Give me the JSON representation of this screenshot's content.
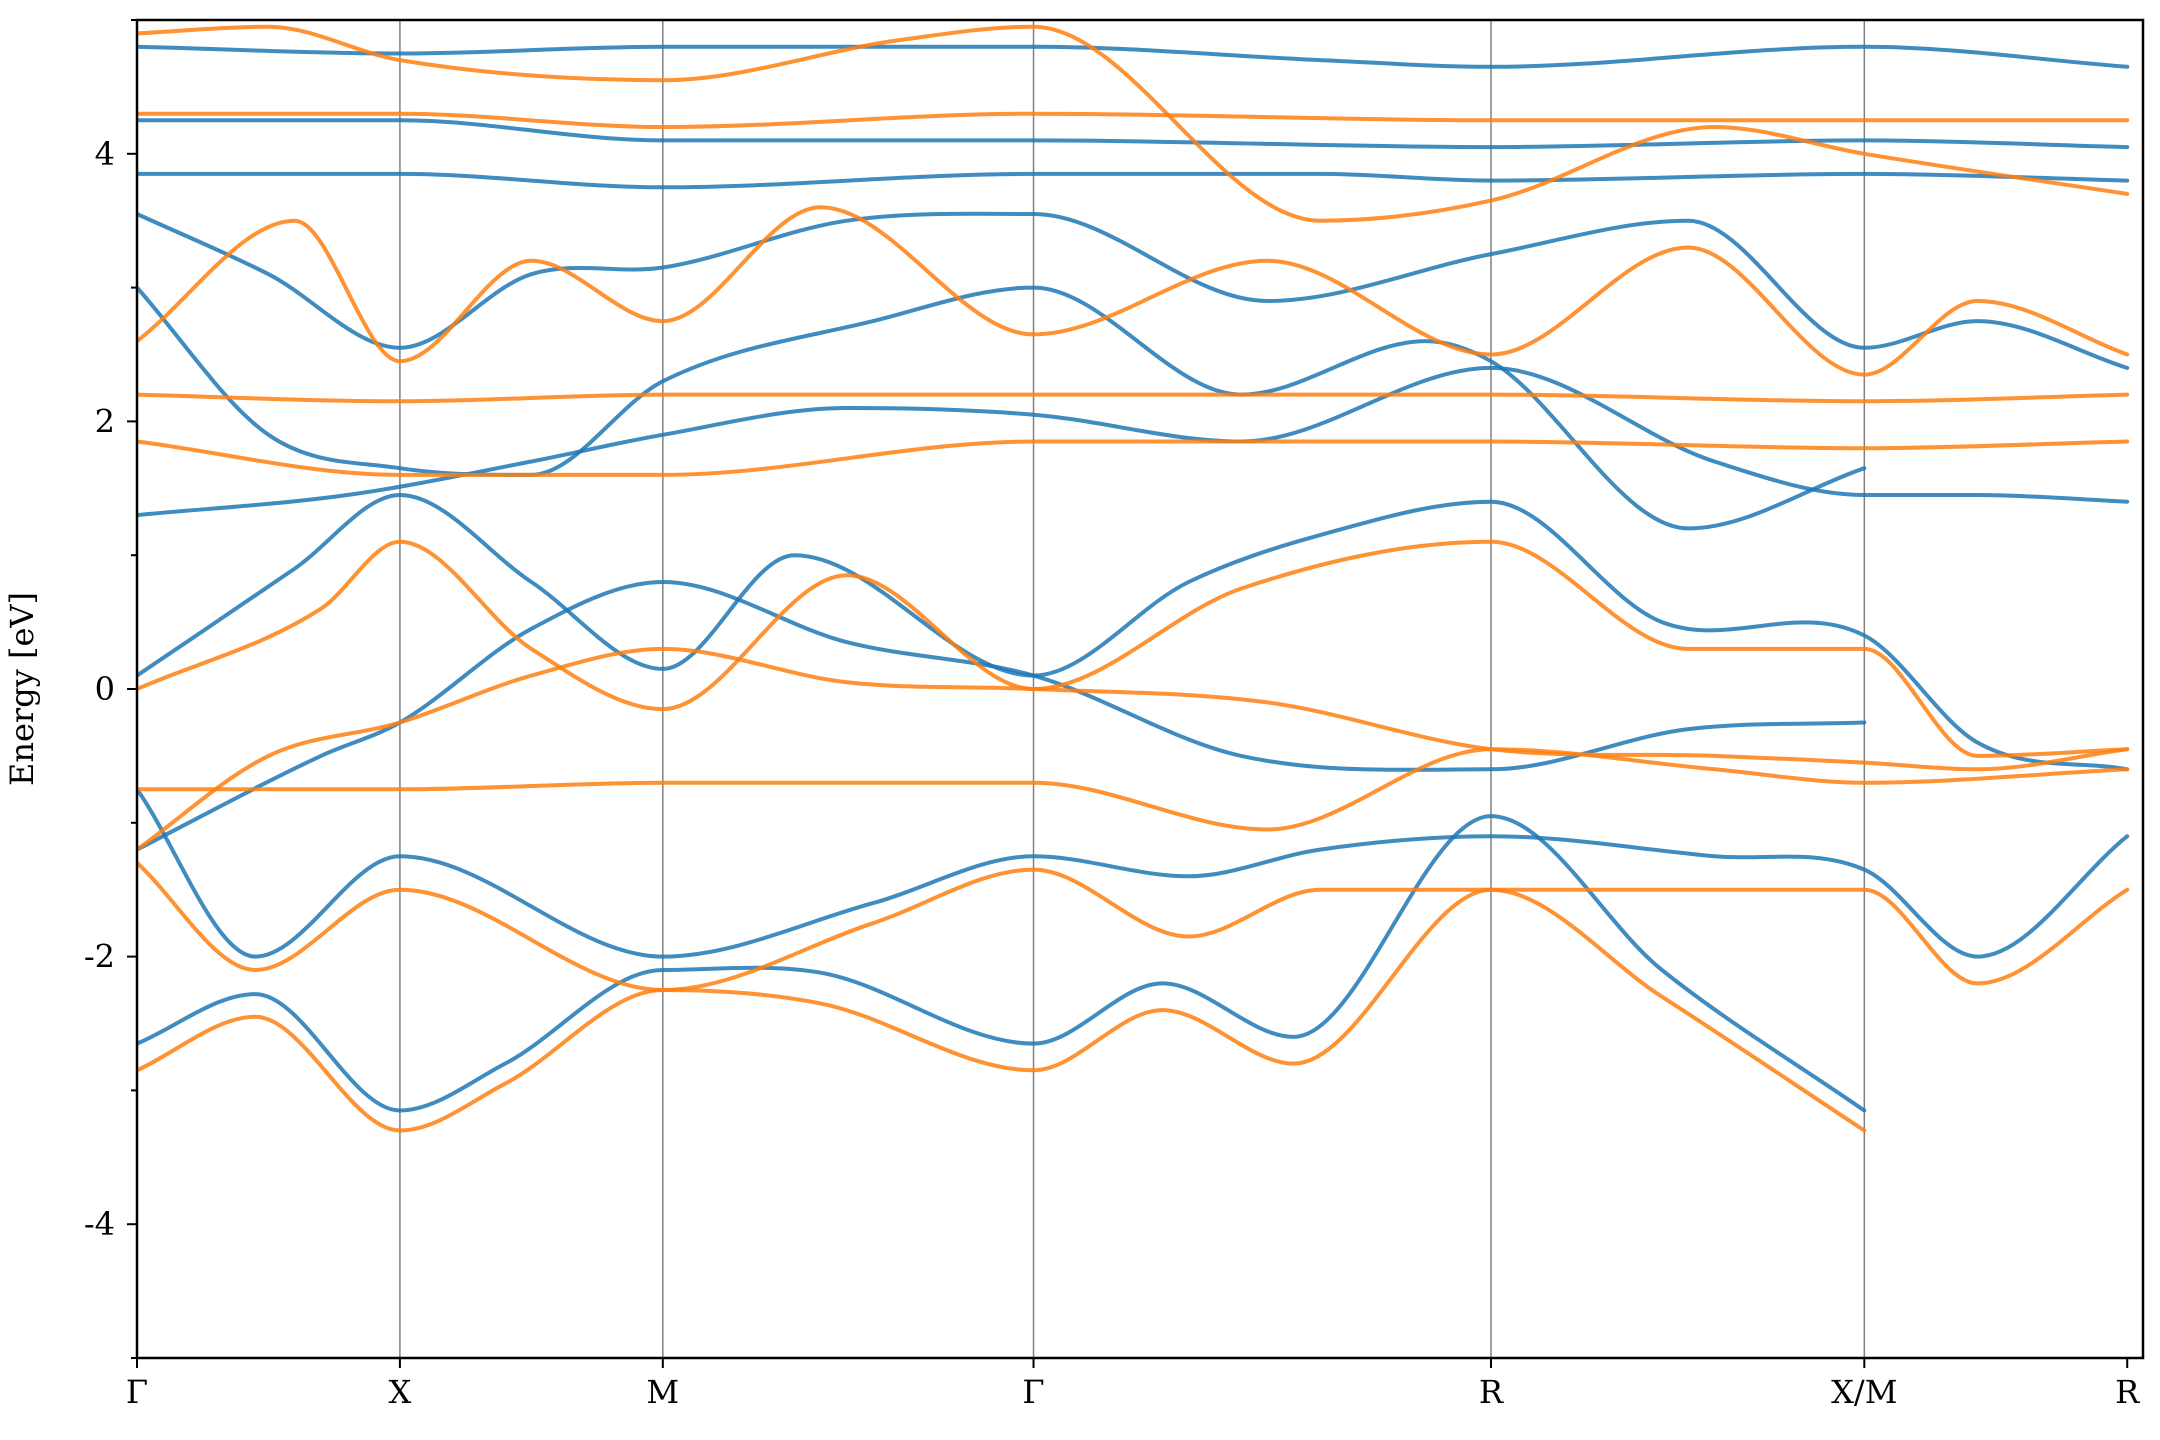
{
  "chart_data": {
    "type": "line",
    "title": "",
    "xlabel": "",
    "ylabel": "Energy [eV]",
    "ylim": [
      -5,
      5
    ],
    "yticks": [
      -4,
      -2,
      0,
      2,
      4
    ],
    "yticklabels": [
      "-4",
      "-2",
      "0",
      "2",
      "4"
    ],
    "x_range": [
      0,
      7.63
    ],
    "kpoints": [
      {
        "label": "Γ",
        "x": 0.0
      },
      {
        "label": "X",
        "x": 1.0
      },
      {
        "label": "M",
        "x": 2.0
      },
      {
        "label": "Γ",
        "x": 3.41
      },
      {
        "label": "R",
        "x": 5.15
      },
      {
        "label": "X/M",
        "x": 6.57
      },
      {
        "label": "R",
        "x": 7.57
      }
    ],
    "grid": false,
    "legend": "none",
    "colors": {
      "series_a": "#1f77b4",
      "series_b": "#ff7f0e"
    },
    "series": [
      {
        "color": "series_a",
        "bands": [
          {
            "x": [
              0,
              0.45,
              1.0,
              1.4,
              2.0,
              2.6,
              3.41,
              3.9,
              4.4,
              5.15,
              5.8,
              6.57
            ],
            "y": [
              -2.65,
              -2.28,
              -3.15,
              -2.8,
              -2.1,
              -2.12,
              -2.65,
              -2.2,
              -2.6,
              -0.95,
              -2.1,
              -3.15
            ]
          },
          {
            "x": [
              0.0,
              0.45,
              1.0,
              2.0,
              2.8,
              3.41,
              4.0,
              4.5,
              5.15,
              6.0,
              6.57,
              7.0,
              7.57
            ],
            "y": [
              -0.75,
              -2.0,
              -1.25,
              -2.0,
              -1.6,
              -1.25,
              -1.4,
              -1.2,
              -1.1,
              -1.25,
              -1.35,
              -2.0,
              -1.1
            ]
          },
          {
            "x": [
              0,
              0.7,
              1.0,
              1.5,
              2.0,
              2.7,
              3.41,
              4.2,
              5.15,
              5.9,
              6.57
            ],
            "y": [
              -1.2,
              -0.5,
              -0.25,
              0.45,
              0.8,
              0.35,
              0.1,
              -0.5,
              -0.6,
              -0.3,
              -0.25
            ]
          },
          {
            "x": [
              0,
              0.6,
              1.0,
              1.5,
              2.0,
              2.5,
              3.41,
              4.0,
              4.5,
              5.15,
              5.8,
              6.57,
              7.0,
              7.57
            ],
            "y": [
              0.1,
              0.9,
              1.45,
              0.8,
              0.15,
              1.0,
              0.1,
              0.8,
              1.15,
              1.4,
              0.5,
              0.4,
              -0.4,
              -0.6
            ]
          },
          {
            "x": [
              0,
              0.5,
              1.0,
              1.5,
              2.0,
              2.8,
              3.41,
              4.2,
              4.9,
              5.15,
              5.9,
              6.57
            ],
            "y": [
              3.0,
              1.9,
              1.65,
              1.6,
              2.3,
              2.75,
              3.0,
              2.2,
              2.6,
              2.45,
              1.2,
              1.65
            ]
          },
          {
            "x": [
              0,
              0.5,
              1.0,
              1.5,
              2.0,
              2.7,
              3.41,
              4.3,
              5.15,
              5.9,
              6.57,
              7.0,
              7.57
            ],
            "y": [
              3.55,
              3.1,
              2.55,
              3.1,
              3.15,
              3.5,
              3.55,
              2.9,
              3.25,
              3.5,
              2.55,
              2.75,
              2.4
            ]
          },
          {
            "x": [
              0,
              1.0,
              2.0,
              3.41,
              4.5,
              5.15,
              6.57,
              7.57
            ],
            "y": [
              3.85,
              3.85,
              3.75,
              3.85,
              3.85,
              3.8,
              3.85,
              3.8
            ]
          },
          {
            "x": [
              0,
              1.0,
              2.0,
              3.41,
              4.5,
              5.15,
              6.57,
              7.57
            ],
            "y": [
              4.8,
              4.75,
              4.8,
              4.8,
              4.7,
              4.65,
              4.8,
              4.65
            ]
          },
          {
            "x": [
              0,
              1.0,
              2.0,
              3.41,
              5.15,
              6.57,
              7.57
            ],
            "y": [
              4.25,
              4.25,
              4.1,
              4.1,
              4.05,
              4.1,
              4.05
            ]
          },
          {
            "x": [
              0,
              0.8,
              1.5,
              2.0,
              2.7,
              3.41,
              4.2,
              5.15,
              6.0,
              6.57,
              7.0,
              7.57
            ],
            "y": [
              1.3,
              1.45,
              1.7,
              1.9,
              2.1,
              2.05,
              1.85,
              2.4,
              1.7,
              1.45,
              1.45,
              1.4
            ]
          }
        ]
      },
      {
        "color": "series_b",
        "bands": [
          {
            "x": [
              0,
              0.45,
              1.0,
              1.4,
              2.0,
              2.6,
              3.41,
              3.9,
              4.4,
              5.15,
              5.8,
              6.57
            ],
            "y": [
              -2.85,
              -2.45,
              -3.3,
              -2.95,
              -2.25,
              -2.35,
              -2.85,
              -2.4,
              -2.8,
              -1.5,
              -2.3,
              -3.3
            ]
          },
          {
            "x": [
              0.0,
              0.45,
              1.0,
              2.0,
              2.8,
              3.41,
              4.0,
              4.5,
              5.15,
              6.0,
              6.57,
              7.0,
              7.57
            ],
            "y": [
              -1.3,
              -2.1,
              -1.5,
              -2.25,
              -1.75,
              -1.35,
              -1.85,
              -1.5,
              -1.5,
              -1.5,
              -1.5,
              -2.2,
              -1.5
            ]
          },
          {
            "x": [
              0,
              1.0,
              2.0,
              3.41,
              4.3,
              5.15,
              6.0,
              6.57,
              7.57
            ],
            "y": [
              -0.75,
              -0.75,
              -0.7,
              -0.7,
              -1.05,
              -0.45,
              -0.6,
              -0.7,
              -0.6
            ]
          },
          {
            "x": [
              0,
              0.7,
              1.0,
              1.5,
              2.0,
              2.7,
              3.41,
              4.2,
              5.15,
              5.9,
              6.57,
              7.0,
              7.57
            ],
            "y": [
              0.0,
              0.6,
              1.1,
              0.3,
              -0.15,
              0.85,
              0.0,
              0.75,
              1.1,
              0.3,
              0.3,
              -0.5,
              -0.45
            ]
          },
          {
            "x": [
              0,
              1.0,
              2.0,
              3.41,
              5.15,
              6.57,
              7.57
            ],
            "y": [
              2.2,
              2.15,
              2.2,
              2.2,
              2.2,
              2.15,
              2.2
            ]
          },
          {
            "x": [
              0,
              1.0,
              2.0,
              3.41,
              4.3,
              5.15,
              6.57,
              7.57
            ],
            "y": [
              1.85,
              1.6,
              1.6,
              1.85,
              1.85,
              1.85,
              1.8,
              1.85
            ]
          },
          {
            "x": [
              0,
              1.0,
              2.0,
              3.41,
              5.15,
              6.57,
              7.57
            ],
            "y": [
              4.3,
              4.3,
              4.2,
              4.3,
              4.25,
              4.25,
              4.25
            ]
          },
          {
            "x": [
              0,
              0.6,
              1.0,
              1.5,
              2.0,
              2.6,
              3.41,
              4.3,
              5.15,
              5.9,
              6.57,
              7.0,
              7.57
            ],
            "y": [
              2.6,
              3.5,
              2.45,
              3.2,
              2.75,
              3.6,
              2.65,
              3.2,
              2.5,
              3.3,
              2.35,
              2.9,
              2.5
            ]
          },
          {
            "x": [
              0,
              0.5,
              1.0,
              1.5,
              2.0,
              2.7,
              3.41,
              4.3,
              5.15,
              6.0,
              6.57,
              7.0,
              7.57
            ],
            "y": [
              -1.2,
              -0.5,
              -0.25,
              0.1,
              0.3,
              0.05,
              0.0,
              -0.1,
              -0.45,
              -0.5,
              -0.55,
              -0.6,
              -0.45
            ]
          },
          {
            "x": [
              0,
              0.5,
              1.0,
              2.0,
              2.9,
              3.41,
              4.5,
              5.15,
              6.0,
              6.57,
              7.57
            ],
            "y": [
              4.9,
              4.95,
              4.7,
              4.55,
              4.85,
              4.95,
              3.5,
              3.65,
              4.2,
              4.0,
              3.7
            ]
          }
        ]
      }
    ]
  }
}
